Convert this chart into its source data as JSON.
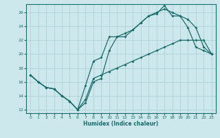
{
  "xlabel": "Humidex (Indice chaleur)",
  "bg_color": "#cce8ec",
  "grid_color": "#b0d0d8",
  "line_color": "#1a6b6b",
  "xlim": [
    -0.5,
    23.5
  ],
  "ylim": [
    11.5,
    27.2
  ],
  "xticks": [
    0,
    1,
    2,
    3,
    4,
    5,
    6,
    7,
    8,
    9,
    10,
    11,
    12,
    13,
    14,
    15,
    16,
    17,
    18,
    19,
    20,
    21,
    22,
    23
  ],
  "yticks": [
    12,
    14,
    16,
    18,
    20,
    22,
    24,
    26
  ],
  "line1_x": [
    0,
    1,
    2,
    3,
    4,
    5,
    6,
    7,
    8,
    9,
    10,
    11,
    12,
    13,
    14,
    15,
    16,
    17,
    18,
    19,
    20,
    21,
    22,
    23
  ],
  "line1_y": [
    17.0,
    16.0,
    15.2,
    15.0,
    14.0,
    13.2,
    12.0,
    13.0,
    16.0,
    16.5,
    20.5,
    22.5,
    22.5,
    23.5,
    24.5,
    25.5,
    25.8,
    27.0,
    25.5,
    25.5,
    23.8,
    21.0,
    20.5,
    20.0
  ],
  "line2_x": [
    0,
    1,
    2,
    3,
    4,
    5,
    6,
    7,
    8,
    9,
    10,
    11,
    12,
    13,
    14,
    15,
    16,
    17,
    18,
    19,
    20,
    21,
    22,
    23
  ],
  "line2_y": [
    17.0,
    16.0,
    15.2,
    15.0,
    14.0,
    13.2,
    12.0,
    15.5,
    19.0,
    19.5,
    22.5,
    22.5,
    23.0,
    23.5,
    24.5,
    25.5,
    26.0,
    26.5,
    26.0,
    25.5,
    25.0,
    23.8,
    21.0,
    20.0
  ],
  "line3_x": [
    0,
    1,
    2,
    3,
    4,
    5,
    6,
    7,
    8,
    9,
    10,
    11,
    12,
    13,
    14,
    15,
    16,
    17,
    18,
    19,
    20,
    21,
    22,
    23
  ],
  "line3_y": [
    17.0,
    16.0,
    15.2,
    15.0,
    14.0,
    13.2,
    12.0,
    13.5,
    16.5,
    17.0,
    17.5,
    18.0,
    18.5,
    19.0,
    19.5,
    20.0,
    20.5,
    21.0,
    21.5,
    22.0,
    22.0,
    22.0,
    22.0,
    20.0
  ]
}
